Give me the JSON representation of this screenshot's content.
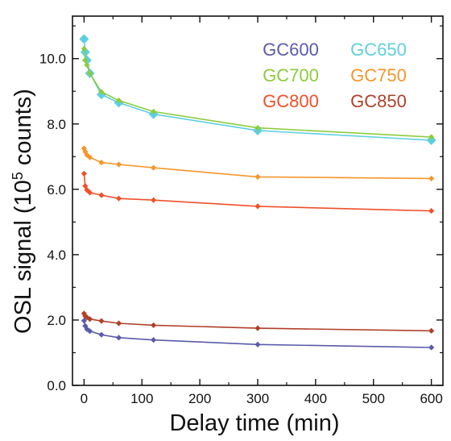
{
  "chart_data": {
    "type": "line",
    "xlabel": "Delay time (min)",
    "ylabel": {
      "prefix": "OSL signal (10",
      "sup": "5",
      "suffix": " counts)"
    },
    "xlim": [
      -20,
      620
    ],
    "ylim": [
      0,
      11.3
    ],
    "xticks": [
      0,
      100,
      200,
      300,
      400,
      500,
      600
    ],
    "xtick_labels": [
      "0",
      "100",
      "200",
      "300",
      "400",
      "500",
      "600"
    ],
    "yticks": [
      0,
      2,
      4,
      6,
      8,
      10
    ],
    "ytick_labels": [
      "0.0",
      "2.0",
      "4.0",
      "6.0",
      "8.0",
      "10.0"
    ],
    "grid": false,
    "legend_position": "top-right",
    "series": [
      {
        "name": "GC600",
        "color": "#5b5baa",
        "marker": "small-diamond",
        "x": [
          0,
          2,
          5,
          10,
          30,
          60,
          120,
          300,
          600
        ],
        "y": [
          1.98,
          1.82,
          1.72,
          1.66,
          1.55,
          1.46,
          1.39,
          1.25,
          1.16
        ]
      },
      {
        "name": "GC650",
        "color": "#5ecfe0",
        "marker": "large-diamond",
        "x": [
          0,
          2,
          5,
          10,
          30,
          60,
          120,
          300,
          600
        ],
        "y": [
          10.6,
          10.2,
          9.95,
          9.55,
          8.9,
          8.65,
          8.3,
          7.8,
          7.5
        ]
      },
      {
        "name": "GC700",
        "color": "#8ccc3c",
        "marker": "small-diamond",
        "x": [
          0,
          2,
          5,
          10,
          30,
          60,
          120,
          300,
          600
        ],
        "y": [
          10.3,
          9.95,
          9.8,
          9.55,
          8.98,
          8.72,
          8.38,
          7.88,
          7.6
        ]
      },
      {
        "name": "GC750",
        "color": "#f5962b",
        "marker": "small-diamond",
        "x": [
          0,
          2,
          5,
          10,
          30,
          60,
          120,
          300,
          600
        ],
        "y": [
          7.25,
          7.15,
          7.05,
          6.98,
          6.82,
          6.76,
          6.66,
          6.38,
          6.33
        ]
      },
      {
        "name": "GC800",
        "color": "#f0502a",
        "marker": "small-diamond",
        "x": [
          0,
          2,
          5,
          10,
          30,
          60,
          120,
          300,
          600
        ],
        "y": [
          6.48,
          6.1,
          5.98,
          5.9,
          5.82,
          5.72,
          5.67,
          5.48,
          5.34
        ]
      },
      {
        "name": "GC850",
        "color": "#b0402a",
        "marker": "small-diamond",
        "x": [
          0,
          2,
          5,
          10,
          30,
          60,
          120,
          300,
          600
        ],
        "y": [
          2.2,
          2.12,
          2.08,
          2.03,
          1.97,
          1.9,
          1.84,
          1.75,
          1.67
        ]
      }
    ],
    "legend_order": [
      "GC600",
      "GC650",
      "GC700",
      "GC750",
      "GC800",
      "GC850"
    ]
  }
}
